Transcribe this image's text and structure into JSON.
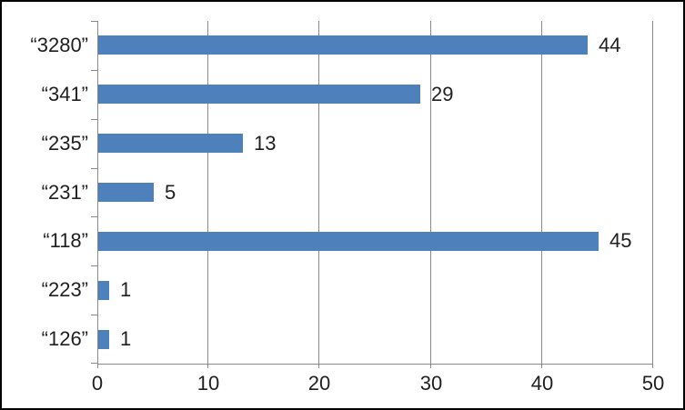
{
  "chart_data": {
    "type": "bar",
    "orientation": "horizontal",
    "title": "",
    "xlabel": "",
    "ylabel": "",
    "categories": [
      "“3280”",
      "“341”",
      "“235”",
      "“231”",
      "“118”",
      "“223”",
      "“126”"
    ],
    "values": [
      44,
      29,
      13,
      5,
      45,
      1,
      1
    ],
    "data_labels": [
      "44",
      "29",
      "13",
      "5",
      "45",
      "1",
      "1"
    ],
    "xlim": [
      0,
      50
    ],
    "x_ticks": [
      "0",
      "10",
      "20",
      "30",
      "40",
      "50"
    ],
    "grid": true,
    "legend": false
  },
  "colors": {
    "bar": "#4E81BC",
    "gridline": "#8A8A8A",
    "axis": "#8A8A8A",
    "text": "#1F1F1F",
    "frame_border": "#000000",
    "background": "#FFFFFF"
  }
}
